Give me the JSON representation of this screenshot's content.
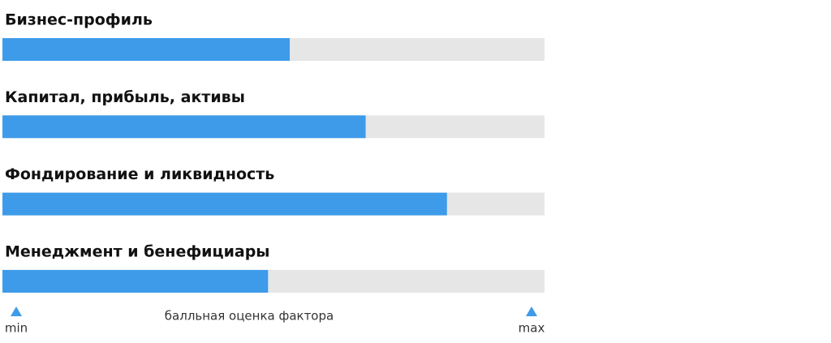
{
  "chart_data": {
    "type": "bar",
    "orientation": "horizontal",
    "categories": [
      "Бизнес-профиль",
      "Капитал, прибыль, активы",
      "Фондирование и ликвидность",
      "Менеджмент и бенефициары"
    ],
    "values": [
      0.53,
      0.67,
      0.82,
      0.49
    ],
    "color": "#3d9be9",
    "track_color": "#e6e6e6",
    "xlim": [
      0,
      1
    ],
    "xticks": [
      {
        "value": 0,
        "label": "min"
      },
      {
        "value": 1,
        "label": "max"
      }
    ],
    "x_label": "балльная оценка фактора"
  }
}
